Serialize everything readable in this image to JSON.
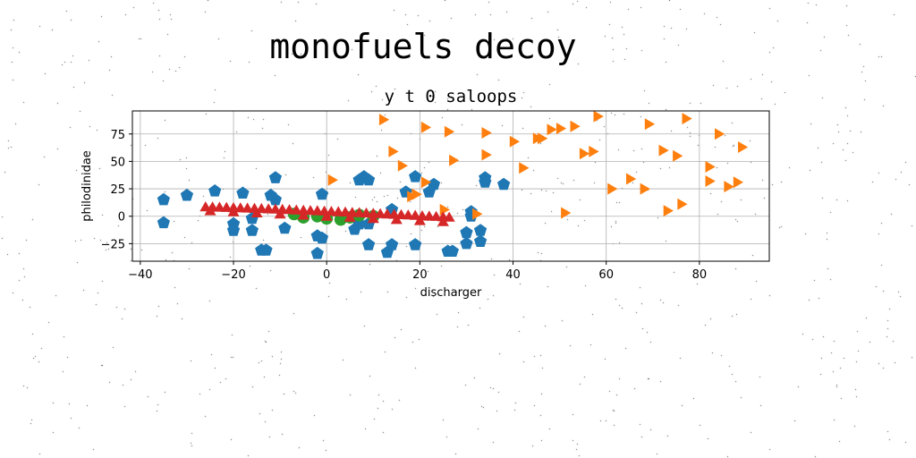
{
  "figure_title": "monofuels decoy",
  "chart_data": {
    "type": "scatter",
    "title": "y t 0 saloops",
    "xlabel": "discharger",
    "ylabel": "philodinidae",
    "xlim": [
      -41.7,
      95.0
    ],
    "ylim": [
      -41.0,
      96.0
    ],
    "xticks": [
      -40,
      -20,
      0,
      20,
      40,
      60,
      80
    ],
    "yticks": [
      -25,
      0,
      25,
      50,
      75
    ],
    "grid": true,
    "series": [
      {
        "marker": "pentagon",
        "color": "#1f77b4",
        "points": [
          [
            -35,
            15
          ],
          [
            -35,
            -6
          ],
          [
            -30,
            19
          ],
          [
            -24,
            23
          ],
          [
            -20,
            -7
          ],
          [
            -20,
            -13
          ],
          [
            -18,
            21
          ],
          [
            -16,
            -2
          ],
          [
            -16,
            -13
          ],
          [
            -14,
            -31
          ],
          [
            -13,
            -31
          ],
          [
            -12,
            19
          ],
          [
            -11,
            15
          ],
          [
            -11,
            35
          ],
          [
            -9,
            -11
          ],
          [
            -2,
            -18
          ],
          [
            -2,
            -34
          ],
          [
            -1,
            -20
          ],
          [
            -1,
            20
          ],
          [
            6,
            -12
          ],
          [
            7,
            -7
          ],
          [
            7,
            33
          ],
          [
            8,
            36
          ],
          [
            9,
            33
          ],
          [
            9,
            -7
          ],
          [
            9,
            -26
          ],
          [
            13,
            -33
          ],
          [
            14,
            -26
          ],
          [
            14,
            6
          ],
          [
            17,
            22
          ],
          [
            19,
            -26
          ],
          [
            19,
            36
          ],
          [
            22,
            22
          ],
          [
            23,
            29
          ],
          [
            26,
            -32
          ],
          [
            27,
            -32
          ],
          [
            30,
            -25
          ],
          [
            30,
            -15
          ],
          [
            31,
            4
          ],
          [
            31,
            0
          ],
          [
            33,
            -13
          ],
          [
            33,
            -23
          ],
          [
            34,
            35
          ],
          [
            34,
            31
          ],
          [
            38,
            29
          ]
        ]
      },
      {
        "marker": "triangle-right",
        "color": "#ff7f0e",
        "points": [
          [
            1,
            33
          ],
          [
            12,
            88
          ],
          [
            14,
            59
          ],
          [
            16,
            46
          ],
          [
            18,
            18
          ],
          [
            19,
            20
          ],
          [
            21,
            81
          ],
          [
            21,
            31
          ],
          [
            25,
            6
          ],
          [
            26,
            77
          ],
          [
            27,
            51
          ],
          [
            32,
            2
          ],
          [
            34,
            76
          ],
          [
            34,
            56
          ],
          [
            40,
            68
          ],
          [
            42,
            44
          ],
          [
            45,
            71
          ],
          [
            46,
            71
          ],
          [
            48,
            79
          ],
          [
            50,
            80
          ],
          [
            51,
            3
          ],
          [
            53,
            82
          ],
          [
            55,
            57
          ],
          [
            57,
            59
          ],
          [
            58,
            91
          ],
          [
            61,
            25
          ],
          [
            65,
            34
          ],
          [
            68,
            25
          ],
          [
            69,
            84
          ],
          [
            72,
            60
          ],
          [
            73,
            5
          ],
          [
            75,
            55
          ],
          [
            76,
            11
          ],
          [
            77,
            89
          ],
          [
            82,
            45
          ],
          [
            82,
            32
          ],
          [
            84,
            75
          ],
          [
            86,
            27
          ],
          [
            88,
            31
          ],
          [
            89,
            63
          ]
        ]
      },
      {
        "marker": "circle",
        "color": "#2ca02c",
        "points": [
          [
            -7,
            2
          ],
          [
            -5,
            -1
          ],
          [
            -2,
            0
          ],
          [
            0,
            -2
          ],
          [
            3,
            -3
          ],
          [
            5,
            -1
          ],
          [
            7,
            1
          ],
          [
            10,
            0
          ]
        ]
      },
      {
        "marker": "triangle-up",
        "color": "#d62728",
        "points": [
          [
            -26,
            7.5
          ],
          [
            -24.5,
            7.4
          ],
          [
            -23,
            7.2
          ],
          [
            -21.5,
            7
          ],
          [
            -20,
            6.8
          ],
          [
            -18.5,
            6.6
          ],
          [
            -17,
            6.4
          ],
          [
            -15.5,
            6.2
          ],
          [
            -14,
            6
          ],
          [
            -12.5,
            5.7
          ],
          [
            -11,
            5.5
          ],
          [
            -9.5,
            5.2
          ],
          [
            -8,
            5
          ],
          [
            -6.5,
            4.7
          ],
          [
            -5,
            4.5
          ],
          [
            -3.5,
            4.2
          ],
          [
            -2,
            4
          ],
          [
            -0.5,
            3.7
          ],
          [
            1,
            3.4
          ],
          [
            2.5,
            3.1
          ],
          [
            4,
            2.8
          ],
          [
            5.5,
            2.5
          ],
          [
            7,
            2.2
          ],
          [
            8.5,
            1.9
          ],
          [
            10,
            1.6
          ],
          [
            11.5,
            1.3
          ],
          [
            13,
            1
          ],
          [
            14.5,
            0.7
          ],
          [
            16,
            0.4
          ],
          [
            17.5,
            0.1
          ],
          [
            19,
            -0.2
          ],
          [
            20.5,
            -0.6
          ],
          [
            22,
            -0.9
          ],
          [
            23.5,
            -1.2
          ],
          [
            25,
            -1.6
          ],
          [
            26.3,
            -1.9
          ],
          [
            -25,
            4
          ],
          [
            -20,
            3
          ],
          [
            -15,
            2
          ],
          [
            -10,
            1
          ],
          [
            -5,
            0
          ],
          [
            0,
            -1
          ],
          [
            5,
            -2
          ],
          [
            10,
            -3
          ],
          [
            15,
            -4
          ],
          [
            20,
            -5
          ],
          [
            25,
            -6
          ]
        ]
      }
    ]
  }
}
